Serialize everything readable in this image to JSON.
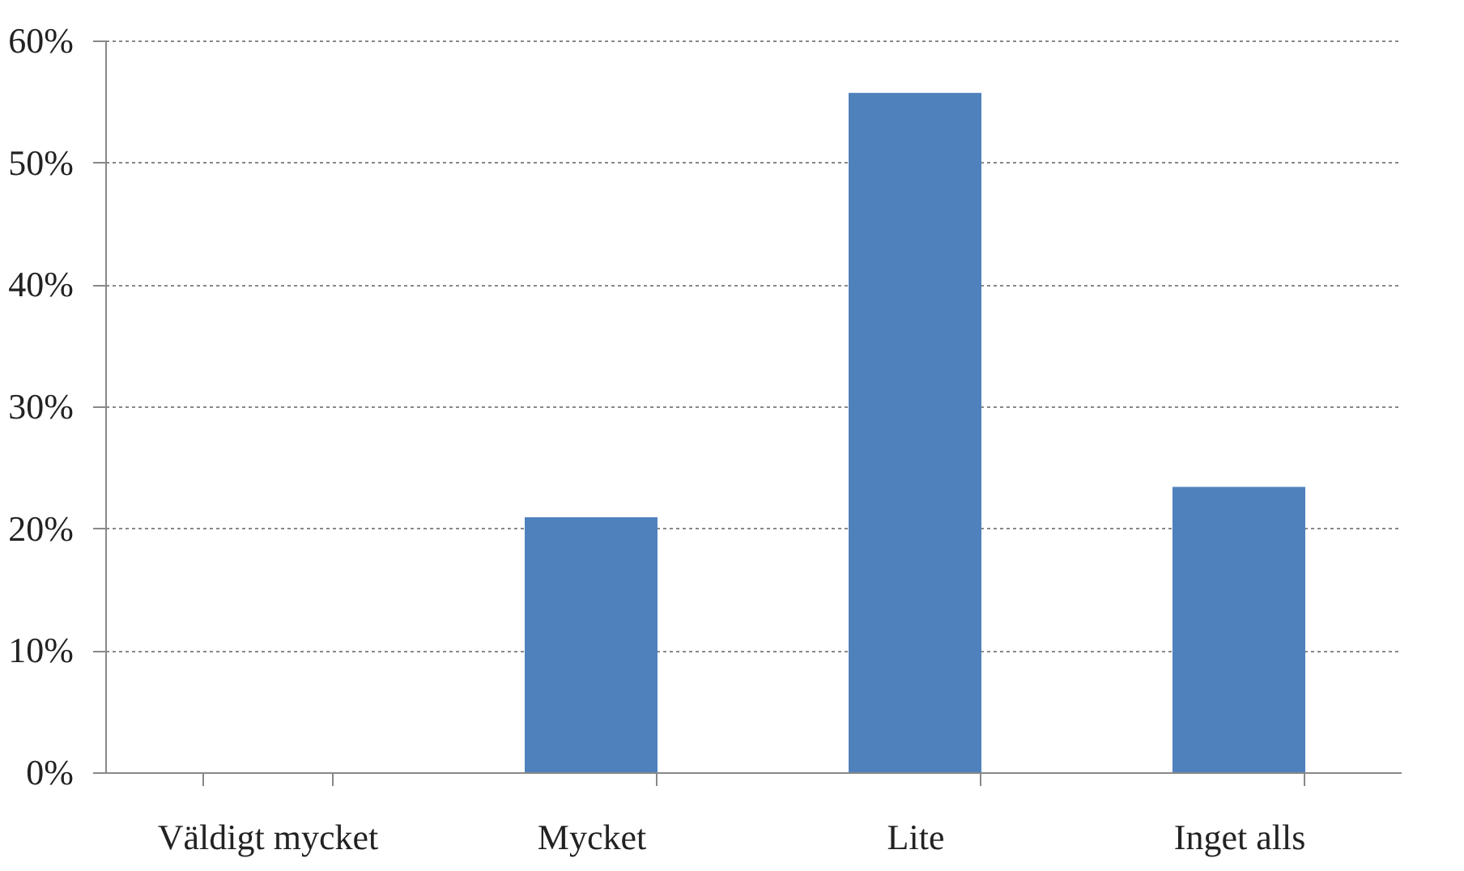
{
  "chart_data": {
    "type": "bar",
    "categories": [
      "Väldigt mycket",
      "Mycket",
      "Lite",
      "Inget alls"
    ],
    "values": [
      0,
      20.9,
      55.7,
      23.4
    ],
    "color": "#4f81bd",
    "ylim": [
      0,
      60
    ],
    "yticks": [
      {
        "value": 0,
        "label": "0%"
      },
      {
        "value": 10,
        "label": "10%"
      },
      {
        "value": 20,
        "label": "20%"
      },
      {
        "value": 30,
        "label": "30%"
      },
      {
        "value": 40,
        "label": "40%"
      },
      {
        "value": 50,
        "label": "50%"
      },
      {
        "value": 60,
        "label": "60%"
      }
    ],
    "grid": "y"
  }
}
